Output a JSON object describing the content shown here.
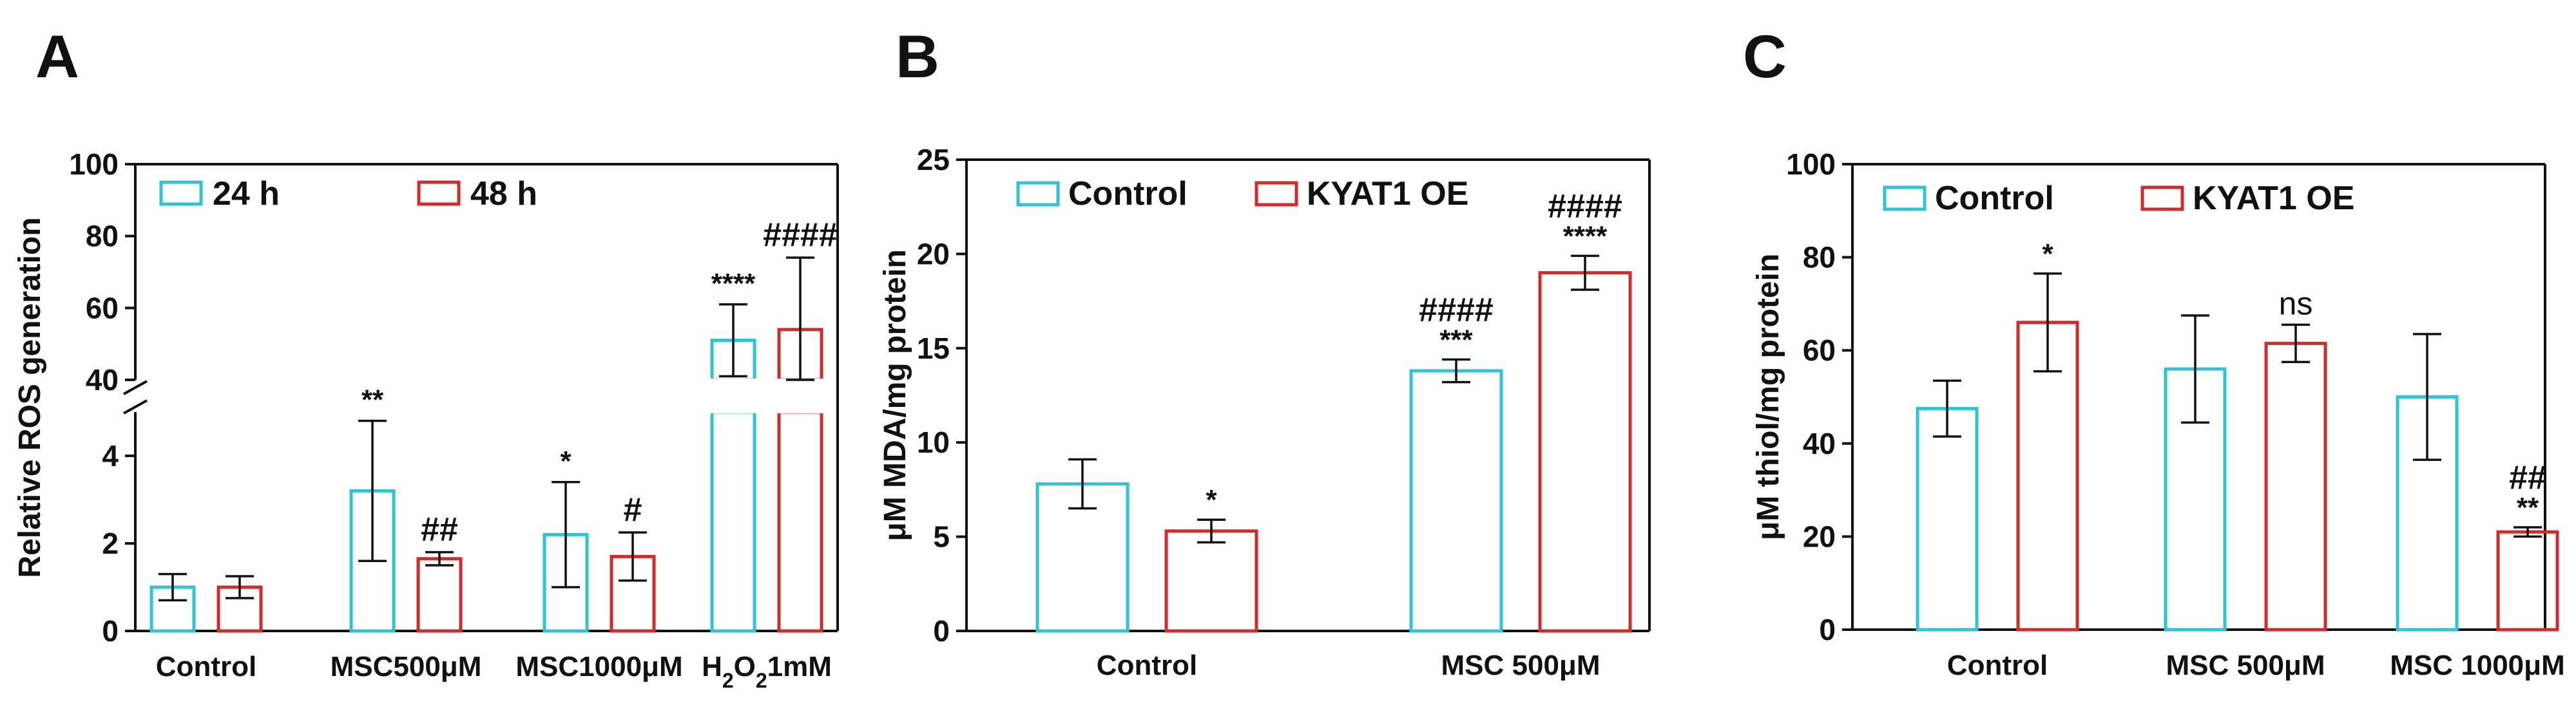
{
  "colors": {
    "series1": "#2ec4d6",
    "series2": "#d32a2a",
    "axis": "#111111"
  },
  "chart_data": [
    {
      "panel": "A",
      "type": "bar",
      "ylabel": "Relative ROS generation",
      "categories": [
        "Control",
        "MSC500μM",
        "MSC1000μM",
        "H2O21mM"
      ],
      "category_display": [
        {
          "text": "Control"
        },
        {
          "text": "MSC500μM"
        },
        {
          "text": "MSC1000μM"
        },
        {
          "pre": "H",
          "sub1": "2",
          "mid": "O",
          "sub2": "2",
          "post": "1mM"
        }
      ],
      "broken_axis": true,
      "lower_range": [
        0,
        5
      ],
      "lower_ticks": [
        "0",
        "2",
        "4"
      ],
      "upper_range": [
        40,
        100
      ],
      "upper_ticks": [
        "40",
        "60",
        "80",
        "100"
      ],
      "series": [
        {
          "name": "24 h",
          "values": [
            1.0,
            3.2,
            2.2,
            51
          ],
          "errors": [
            0.3,
            1.6,
            1.2,
            10
          ],
          "sig": [
            "",
            "**",
            "*",
            "****"
          ]
        },
        {
          "name": "48 h",
          "values": [
            1.0,
            1.65,
            1.7,
            54
          ],
          "errors": [
            0.25,
            0.15,
            0.55,
            20
          ],
          "sig": [
            "",
            "##",
            "#",
            "####"
          ]
        }
      ]
    },
    {
      "panel": "B",
      "type": "bar",
      "ylabel": "μM MDA/mg protein",
      "categories": [
        "Control",
        "MSC 500μM"
      ],
      "ylim": [
        0,
        25
      ],
      "yticks": [
        "0",
        "5",
        "10",
        "15",
        "20",
        "25"
      ],
      "series": [
        {
          "name": "Control",
          "values": [
            7.8,
            13.8
          ],
          "errors": [
            1.3,
            0.6
          ],
          "sig": [
            "",
            "***"
          ],
          "sig2": [
            "",
            "####"
          ]
        },
        {
          "name": "KYAT1 OE",
          "values": [
            5.3,
            19.0
          ],
          "errors": [
            0.6,
            0.9
          ],
          "sig": [
            "*",
            "****"
          ],
          "sig2": [
            "",
            "####"
          ]
        }
      ]
    },
    {
      "panel": "C",
      "type": "bar",
      "ylabel": "μM thiol/mg protein",
      "categories": [
        "Control",
        "MSC 500μM",
        "MSC 1000μM"
      ],
      "ylim": [
        0,
        100
      ],
      "yticks": [
        "0",
        "20",
        "40",
        "60",
        "80",
        "100"
      ],
      "series": [
        {
          "name": "Control",
          "values": [
            47.5,
            56,
            50
          ],
          "errors": [
            6,
            11.5,
            13.5
          ],
          "sig": [
            "",
            "",
            ""
          ],
          "sig2": [
            "",
            "",
            ""
          ]
        },
        {
          "name": "KYAT1 OE",
          "values": [
            66,
            61.5,
            21
          ],
          "errors": [
            10.5,
            4,
            1
          ],
          "sig": [
            "*",
            "ns",
            "**"
          ],
          "sig2": [
            "",
            "",
            "##"
          ]
        }
      ]
    }
  ]
}
